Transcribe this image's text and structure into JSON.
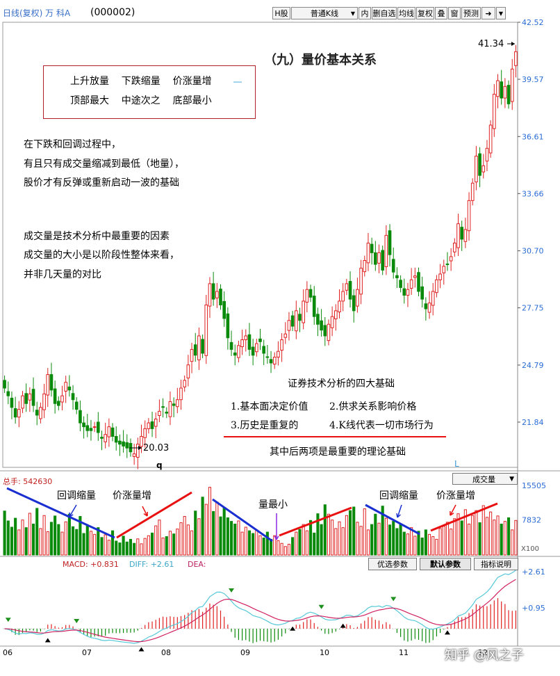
{
  "header": {
    "title": "日线(复权) 万 科A",
    "code": "(000002)",
    "toolbar": [
      "H股",
      "普通K线",
      "内",
      "删自选",
      "均线",
      "复权",
      "叠",
      "窗",
      "预测"
    ],
    "toolbar_dropdown_icon": "chevron-down-icon",
    "toolbar_nav_icon": "arrow-right-icon"
  },
  "main": {
    "heading": "（九）量价基本关系",
    "box_lines": [
      "上升放量    下跌缩量    价涨量增",
      "顶部最大    中途次之    底部最小"
    ],
    "notes_1": [
      "在下跌和回调过程中，",
      "有且只有成交量缩减到最低（地量），",
      "股价才有反弹或重新启动一波的基础"
    ],
    "notes_2": [
      "成交量是技术分析中最重要的因素",
      "成交量的大小是以阶段性整体来看，",
      "并非几天量的对比"
    ],
    "basics_title": "证券技术分析的四大基础",
    "basics": [
      "1.基本面决定价值",
      "2.供求关系影响价格",
      "3.历史是重复的",
      "4.K线代表一切市场行为"
    ],
    "basics_footer": "其中后两项是最重要的理论基础",
    "max_label": "41.34",
    "min_label": "20.03",
    "stray_q": "q",
    "stray_l": "L"
  },
  "volume_panel": {
    "total_label": "总手: 542630",
    "selector": "成交量",
    "annotations": [
      "回调缩量",
      "价涨量增",
      "量最小",
      "回调缩量",
      "价涨量增"
    ],
    "multiplier": "X100"
  },
  "macd_panel": {
    "macd": "MACD: +0.831",
    "diff": "DIFF: +2.61",
    "dea": "DEA:",
    "buttons": [
      "优选参数",
      "默认参数",
      "指标说明"
    ]
  },
  "watermark": "知乎 @风之子",
  "colors": {
    "up": "#e02020",
    "down": "#0a8a0a",
    "blue_trend": "#1a2fd0",
    "red_trend": "#e81010",
    "axis": "#2b6cd6",
    "macd_diff": "#55c8d8",
    "macd_dea": "#d02060",
    "arrow_green": "#1d8f1d"
  },
  "chart_data": [
    {
      "type": "candlestick",
      "title": "日线(复权) 万 科A (000002)",
      "yticks": [
        42.52,
        39.57,
        36.61,
        33.66,
        30.7,
        27.75,
        24.79,
        21.84
      ],
      "ylim": [
        19.5,
        42.52
      ],
      "x_tick_labels": [
        "06",
        "07",
        "08",
        "09",
        "10",
        "11",
        "12"
      ],
      "max_price": 41.34,
      "min_price": 20.03,
      "series": [
        {
          "values": [
            23.6,
            23.2,
            22.6,
            22.1,
            22.5,
            23.2,
            22.8,
            23.3,
            22.7,
            22.2,
            22.6,
            23.3,
            24.3,
            23.5,
            22.8,
            22.7,
            23.2,
            23.9,
            23.5,
            23.0,
            22.5,
            21.8,
            21.6,
            21.4,
            21.4,
            21.6,
            21.3,
            21.0,
            21.2,
            21.6,
            21.1,
            20.8,
            20.7,
            20.6,
            20.5,
            20.3,
            20.2,
            20.7,
            21.1,
            21.5,
            21.8,
            21.5,
            22.0,
            22.4,
            22.6,
            22.3,
            22.9,
            22.7,
            23.0,
            23.6,
            24.0,
            24.8,
            25.6,
            25.3,
            26.3,
            25.4,
            27.9,
            29.0,
            28.2,
            28.6,
            27.9,
            27.2,
            26.2,
            25.6,
            25.3,
            25.8,
            26.1,
            26.3,
            25.6,
            25.3,
            25.9,
            26.0,
            25.4,
            25.2,
            24.9,
            25.2,
            25.5,
            26.1,
            26.4,
            27.1,
            26.8,
            27.6,
            27.1,
            28.1,
            28.7,
            28.3,
            27.3,
            26.9,
            26.6,
            26.3,
            26.9,
            27.3,
            27.6,
            28.1,
            28.6,
            29.0,
            28.2,
            27.6,
            28.7,
            29.8,
            30.2,
            31.1,
            30.6,
            30.0,
            30.6,
            29.7,
            31.5,
            30.5,
            29.6,
            29.3,
            28.8,
            28.4,
            28.7,
            29.2,
            29.4,
            28.6,
            28.2,
            27.7,
            28.0,
            28.6,
            29.2,
            29.5,
            29.9,
            30.0,
            30.4,
            31.1,
            32.1,
            31.3,
            31.8,
            33.3,
            34.2,
            35.6,
            34.6,
            35.1,
            36.0,
            37.2,
            38.8,
            39.5,
            38.6,
            39.2,
            38.3,
            40.1,
            41.0
          ]
        }
      ]
    },
    {
      "type": "bar",
      "title": "成交量",
      "total": 542630,
      "yticks": [
        15505,
        7832
      ],
      "unit": "X100",
      "series": [
        {
          "values": [
            9800,
            7600,
            6200,
            8200,
            5600,
            7800,
            6100,
            9300,
            6900,
            10400,
            5900,
            8800,
            5200,
            7300,
            8700,
            6800,
            5100,
            7400,
            9100,
            6300,
            5700,
            8600,
            4800,
            6700,
            5300,
            4600,
            6100,
            3900,
            4500,
            3300,
            5400,
            3100,
            2700,
            4200,
            2900,
            3500,
            2600,
            3600,
            2500,
            3700,
            4300,
            4900,
            6500,
            7800,
            3800,
            4100,
            5300,
            4700,
            5800,
            7200,
            8600,
            6700,
            5400,
            9800,
            8100,
            12900,
            11300,
            15100,
            9700,
            11800,
            8500,
            10600,
            8300,
            7500,
            6900,
            7600,
            5100,
            6200,
            5400,
            4800,
            5600,
            4300,
            3800,
            5100,
            3500,
            4300,
            3200,
            2600,
            1900,
            2400,
            3900,
            5100,
            5700,
            6800,
            5400,
            7700,
            4900,
            9200,
            6800,
            11200,
            9100,
            7800,
            5900,
            7400,
            6100,
            8800,
            9900,
            10700,
            7300,
            6400,
            10300,
            5600,
            6800,
            9100,
            7100,
            10900,
            8200,
            6700,
            7500,
            5900,
            6900,
            5100,
            4700,
            6100,
            4200,
            5300,
            3800,
            5600,
            4600,
            4100,
            3500,
            5900,
            6400,
            7300,
            5800,
            8100,
            9200,
            7600,
            10100,
            6900,
            8800,
            9900,
            7200,
            11000,
            8400,
            9600,
            7800,
            8700,
            6900,
            7500,
            8300,
            5600,
            7700
          ]
        }
      ]
    },
    {
      "type": "line",
      "title": "MACD",
      "MACD": 0.831,
      "DIFF": 2.61,
      "yticks": [
        2.61,
        0.95
      ],
      "signal_arrows": {
        "sell": 5,
        "buy": 6
      }
    }
  ]
}
